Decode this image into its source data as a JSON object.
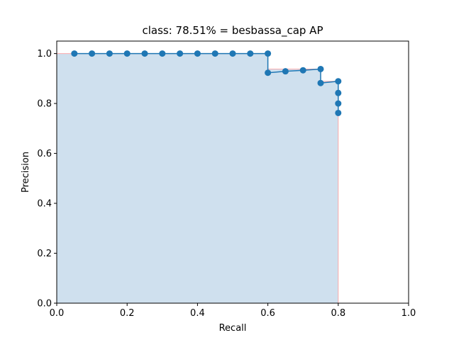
{
  "chart_data": {
    "type": "line",
    "title": "class: 78.51% = besbassa_cap AP",
    "xlabel": "Recall",
    "ylabel": "Precision",
    "xlim": [
      0.0,
      1.0
    ],
    "ylim": [
      0.0,
      1.05
    ],
    "xticks": [
      0.0,
      0.2,
      0.4,
      0.6,
      0.8,
      1.0
    ],
    "xtick_labels": [
      "0.0",
      "0.2",
      "0.4",
      "0.6",
      "0.8",
      "1.0"
    ],
    "yticks": [
      0.0,
      0.2,
      0.4,
      0.6,
      0.8,
      1.0
    ],
    "ytick_labels": [
      "0.0",
      "0.2",
      "0.4",
      "0.6",
      "0.8",
      "1.0"
    ],
    "grid": false,
    "legend": "none",
    "series": [
      {
        "kind": "precision-points",
        "color": "#1f77b4",
        "x": [
          0.05,
          0.1,
          0.15,
          0.2,
          0.25,
          0.3,
          0.35,
          0.4,
          0.45,
          0.5,
          0.55,
          0.6,
          0.6,
          0.65,
          0.7,
          0.75,
          0.75,
          0.8,
          0.8,
          0.8,
          0.8
        ],
        "y": [
          1.0,
          1.0,
          1.0,
          1.0,
          1.0,
          1.0,
          1.0,
          1.0,
          1.0,
          1.0,
          1.0,
          1.0,
          0.923,
          0.929,
          0.933,
          0.938,
          0.882,
          0.889,
          0.842,
          0.8,
          0.762
        ]
      },
      {
        "kind": "interpolated-area",
        "line_color": "#ff9999",
        "fill_color": "#cfe0ee",
        "x": [
          0.0,
          0.6,
          0.6,
          0.75,
          0.75,
          0.8,
          0.8
        ],
        "y": [
          1.0,
          1.0,
          0.938,
          0.938,
          0.889,
          0.889,
          0.0
        ]
      }
    ]
  }
}
